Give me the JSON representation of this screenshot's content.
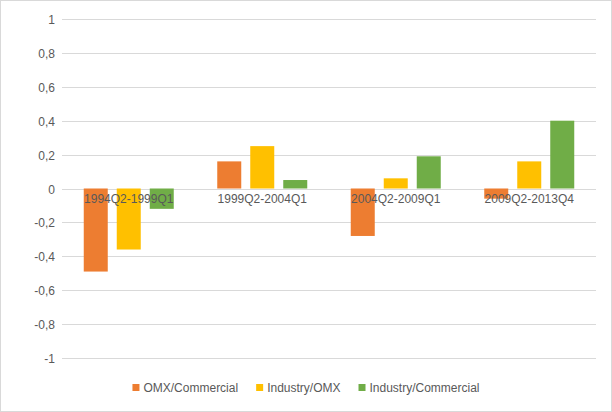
{
  "chart_data": {
    "type": "bar",
    "categories": [
      "1994Q2-1999Q1",
      "1999Q2-2004Q1",
      "2004Q2-2009Q1",
      "2009Q2-2013Q4"
    ],
    "series": [
      {
        "name": "OMX/Commercial",
        "color": "#ed7d31",
        "values": [
          -0.49,
          0.16,
          -0.28,
          -0.06
        ]
      },
      {
        "name": "Industry/OMX",
        "color": "#ffc000",
        "values": [
          -0.36,
          0.25,
          0.06,
          0.16
        ]
      },
      {
        "name": "Industry/Commercial",
        "color": "#70ad47",
        "values": [
          -0.12,
          0.05,
          0.19,
          0.4
        ]
      }
    ],
    "ylim": [
      -1,
      1
    ],
    "yticks": [
      -1,
      {
        "value": -0.8,
        "label": "-0,8"
      },
      {
        "value": -0.6,
        "label": "-0,6"
      },
      {
        "value": -0.4,
        "label": "-0,4"
      },
      {
        "value": -0.2,
        "label": "-0,2"
      },
      0,
      {
        "value": 0.2,
        "label": "0,2"
      },
      {
        "value": 0.4,
        "label": "0,4"
      },
      {
        "value": 0.6,
        "label": "0,6"
      },
      {
        "value": 0.8,
        "label": "0,8"
      },
      1
    ],
    "grid": true,
    "legend": "bottom"
  }
}
